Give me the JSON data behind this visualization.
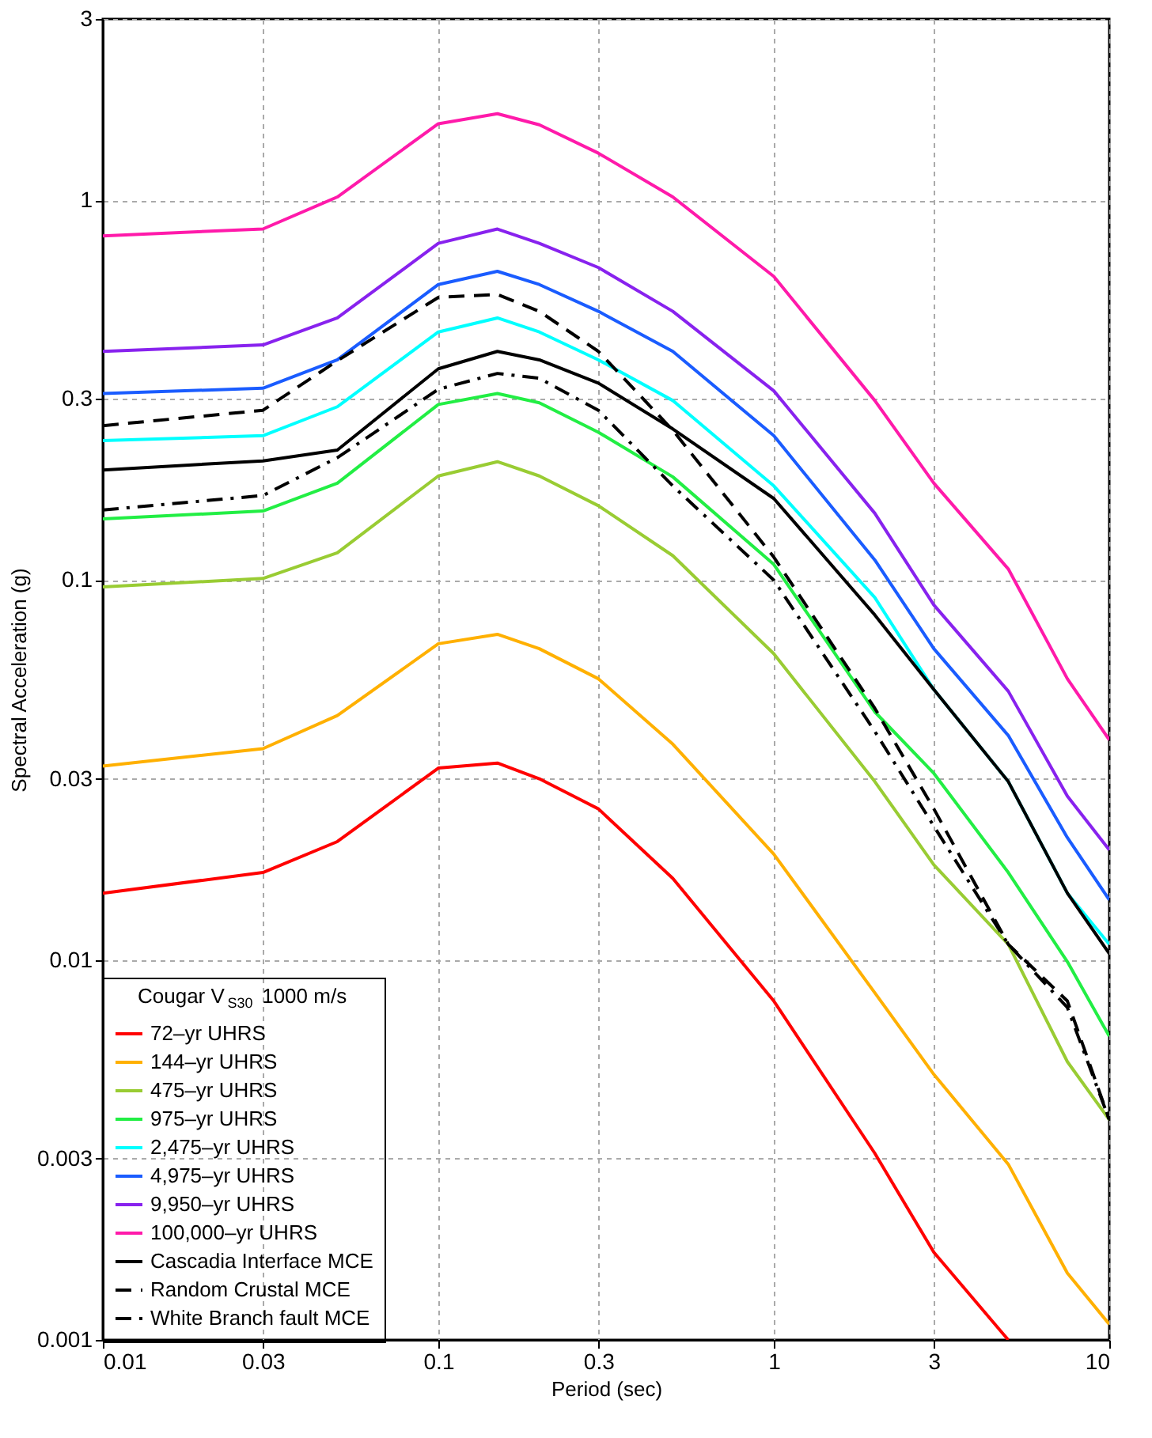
{
  "chart_data": {
    "type": "line",
    "xlabel": "Period (sec)",
    "ylabel": "Spectral Acceleration (g)",
    "legend_title": "Cougar V$_{S30}$ 1000 m/s",
    "log": "xy",
    "grid": true,
    "legend": "bottom left",
    "x": [
      0.01,
      0.03,
      0.05,
      0.1,
      0.15,
      0.2,
      0.3,
      0.5,
      1,
      2,
      3,
      5,
      7.5,
      10
    ],
    "xlim": [
      0.01,
      10
    ],
    "xticks": [
      0.01,
      0.03,
      0.1,
      0.3,
      1,
      3,
      10
    ],
    "ylim": [
      0.001,
      3
    ],
    "yticks": [
      0.001,
      0.003,
      0.01,
      0.03,
      0.1,
      0.3,
      1,
      3
    ],
    "series": [
      {
        "name": "72–yr UHRS",
        "color": "#ff0000",
        "line_style": "solid",
        "values": [
          0.015,
          0.017,
          0.0205,
          0.032,
          0.033,
          0.03,
          0.025,
          0.0164,
          0.0078,
          0.0031,
          0.0017,
          0.001,
          null,
          null
        ]
      },
      {
        "name": "144–yr UHRS",
        "color": "#ffb000",
        "line_style": "solid",
        "values": [
          0.0324,
          0.036,
          0.044,
          0.068,
          0.072,
          0.066,
          0.055,
          0.037,
          0.019,
          0.0082,
          0.005,
          0.0029,
          0.0015,
          0.0011
        ]
      },
      {
        "name": "475–yr UHRS",
        "color": "#99cc33",
        "line_style": "solid",
        "values": [
          0.096,
          0.101,
          0.118,
          0.188,
          0.205,
          0.188,
          0.157,
          0.116,
          0.064,
          0.0295,
          0.0178,
          0.011,
          0.0054,
          0.0038
        ]
      },
      {
        "name": "975–yr UHRS",
        "color": "#22ee44",
        "line_style": "solid",
        "values": [
          0.145,
          0.152,
          0.18,
          0.29,
          0.31,
          0.293,
          0.245,
          0.187,
          0.11,
          0.045,
          0.031,
          0.017,
          0.0099,
          0.0063
        ]
      },
      {
        "name": "2,475–yr UHRS",
        "color": "#00ffff",
        "line_style": "solid",
        "values": [
          0.233,
          0.24,
          0.286,
          0.45,
          0.49,
          0.45,
          0.38,
          0.297,
          0.177,
          0.09,
          0.0515,
          0.0295,
          0.015,
          0.011
        ]
      },
      {
        "name": "4,975–yr UHRS",
        "color": "#1a5cff",
        "line_style": "solid",
        "values": [
          0.31,
          0.32,
          0.38,
          0.6,
          0.65,
          0.6,
          0.51,
          0.4,
          0.24,
          0.113,
          0.066,
          0.039,
          0.021,
          0.0144
        ]
      },
      {
        "name": "9,950–yr UHRS",
        "color": "#8822ee",
        "line_style": "solid",
        "values": [
          0.4,
          0.416,
          0.49,
          0.77,
          0.84,
          0.77,
          0.665,
          0.51,
          0.315,
          0.15,
          0.086,
          0.051,
          0.027,
          0.0195
        ]
      },
      {
        "name": "100,000–yr UHRS",
        "color": "#ff1aaa",
        "line_style": "solid",
        "values": [
          0.806,
          0.84,
          1.02,
          1.59,
          1.69,
          1.58,
          1.33,
          1.02,
          0.63,
          0.297,
          0.18,
          0.107,
          0.055,
          0.038
        ]
      },
      {
        "name": "Cascadia Interface MCE",
        "color": "#000000",
        "line_style": "solid",
        "values": [
          0.195,
          0.206,
          0.22,
          0.36,
          0.4,
          0.38,
          0.33,
          0.25,
          0.164,
          0.081,
          0.0515,
          0.0295,
          0.015,
          0.0104
        ]
      },
      {
        "name": "Random Crustal MCE",
        "color": "#000000",
        "line_style": "dashed",
        "values": [
          0.255,
          0.28,
          0.378,
          0.555,
          0.565,
          0.51,
          0.4,
          0.248,
          0.115,
          0.046,
          0.025,
          0.011,
          0.0078,
          0.0038
        ]
      },
      {
        "name": "White Branch fault MCE",
        "color": "#000000",
        "line_style": "dashdot",
        "values": [
          0.153,
          0.167,
          0.21,
          0.318,
          0.35,
          0.34,
          0.28,
          0.177,
          0.1,
          0.04,
          0.0225,
          0.011,
          0.0075,
          0.0038
        ]
      }
    ]
  }
}
